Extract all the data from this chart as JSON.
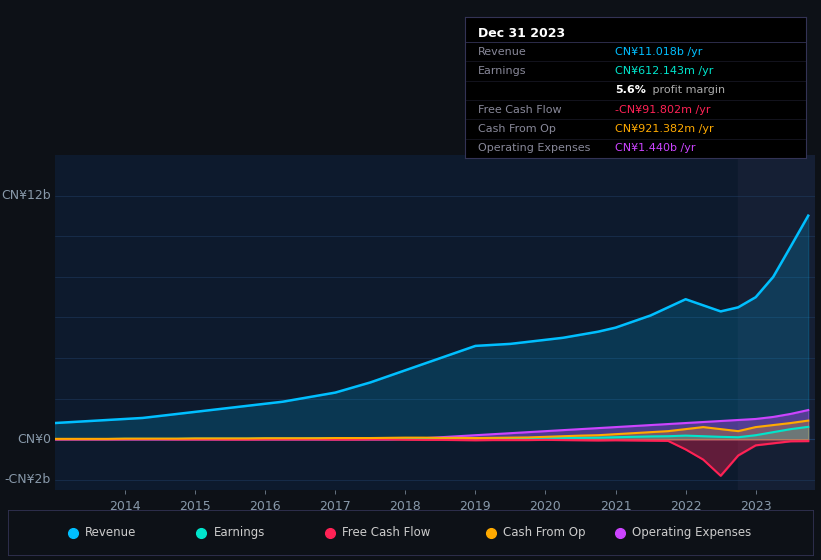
{
  "bg_color": "#0d1117",
  "plot_bg_color": "#0d1a2d",
  "grid_color": "#1e3a5f",
  "text_color": "#8899aa",
  "title_color": "#ffffff",
  "years": [
    2013.0,
    2013.25,
    2013.5,
    2013.75,
    2014.0,
    2014.25,
    2014.5,
    2014.75,
    2015.0,
    2015.25,
    2015.5,
    2015.75,
    2016.0,
    2016.25,
    2016.5,
    2016.75,
    2017.0,
    2017.25,
    2017.5,
    2017.75,
    2018.0,
    2018.25,
    2018.5,
    2018.75,
    2019.0,
    2019.25,
    2019.5,
    2019.75,
    2020.0,
    2020.25,
    2020.5,
    2020.75,
    2021.0,
    2021.25,
    2021.5,
    2021.75,
    2022.0,
    2022.25,
    2022.5,
    2022.75,
    2023.0,
    2023.25,
    2023.5,
    2023.75
  ],
  "revenue": [
    0.8,
    0.85,
    0.9,
    0.95,
    1.0,
    1.05,
    1.15,
    1.25,
    1.35,
    1.45,
    1.55,
    1.65,
    1.75,
    1.85,
    2.0,
    2.15,
    2.3,
    2.55,
    2.8,
    3.1,
    3.4,
    3.7,
    4.0,
    4.3,
    4.6,
    4.65,
    4.7,
    4.8,
    4.9,
    5.0,
    5.15,
    5.3,
    5.5,
    5.8,
    6.1,
    6.5,
    6.9,
    6.6,
    6.3,
    6.5,
    7.0,
    8.0,
    9.5,
    11.018
  ],
  "earnings": [
    0.01,
    0.01,
    0.01,
    0.01,
    0.02,
    0.02,
    0.02,
    0.02,
    0.03,
    0.03,
    0.03,
    0.03,
    0.04,
    0.04,
    0.04,
    0.05,
    0.05,
    0.05,
    0.05,
    0.05,
    0.06,
    0.06,
    0.06,
    0.05,
    0.05,
    0.05,
    0.06,
    0.06,
    0.07,
    0.07,
    0.07,
    0.08,
    0.1,
    0.12,
    0.14,
    0.15,
    0.18,
    0.15,
    0.12,
    0.1,
    0.2,
    0.35,
    0.5,
    0.612
  ],
  "free_cash_flow": [
    0.0,
    0.0,
    0.0,
    0.0,
    0.01,
    0.01,
    0.01,
    0.0,
    0.0,
    0.0,
    -0.01,
    -0.01,
    0.0,
    0.0,
    0.0,
    0.0,
    -0.01,
    -0.01,
    0.0,
    0.0,
    -0.02,
    -0.03,
    -0.03,
    -0.04,
    -0.05,
    -0.04,
    -0.04,
    -0.04,
    -0.03,
    -0.04,
    -0.05,
    -0.06,
    -0.05,
    -0.06,
    -0.07,
    -0.08,
    -0.5,
    -1.0,
    -1.8,
    -0.8,
    -0.3,
    -0.2,
    -0.1,
    -0.092
  ],
  "cash_from_op": [
    0.02,
    0.02,
    0.02,
    0.02,
    0.03,
    0.03,
    0.03,
    0.03,
    0.04,
    0.04,
    0.04,
    0.04,
    0.05,
    0.05,
    0.05,
    0.05,
    0.06,
    0.06,
    0.06,
    0.07,
    0.08,
    0.08,
    0.07,
    0.07,
    0.06,
    0.07,
    0.08,
    0.09,
    0.12,
    0.15,
    0.18,
    0.2,
    0.25,
    0.3,
    0.35,
    0.4,
    0.5,
    0.6,
    0.5,
    0.4,
    0.6,
    0.7,
    0.8,
    0.921
  ],
  "operating_expenses": [
    0.0,
    0.0,
    0.0,
    0.0,
    0.0,
    0.0,
    0.0,
    0.0,
    0.0,
    0.0,
    0.0,
    0.0,
    0.0,
    0.0,
    0.0,
    0.0,
    0.0,
    0.0,
    0.0,
    0.0,
    0.02,
    0.05,
    0.1,
    0.15,
    0.2,
    0.25,
    0.3,
    0.35,
    0.4,
    0.45,
    0.5,
    0.55,
    0.6,
    0.65,
    0.7,
    0.75,
    0.8,
    0.85,
    0.9,
    0.95,
    1.0,
    1.1,
    1.25,
    1.44
  ],
  "revenue_color": "#00bfff",
  "earnings_color": "#00e5cc",
  "free_cash_flow_color": "#ff2255",
  "cash_from_op_color": "#ffaa00",
  "operating_expenses_color": "#cc44ff",
  "info_box": {
    "title": "Dec 31 2023",
    "title_color": "#ffffff",
    "rows": [
      {
        "label": "Revenue",
        "value": "CN¥11.018b /yr",
        "value_color": "#00bfff",
        "label_color": "#888899"
      },
      {
        "label": "Earnings",
        "value": "CN¥612.143m /yr",
        "value_color": "#00e5cc",
        "label_color": "#888899"
      },
      {
        "label": "",
        "value": "5.6% profit margin",
        "value_color": "#ffffff",
        "label_color": "#888899"
      },
      {
        "label": "Free Cash Flow",
        "value": "-CN¥91.802m /yr",
        "value_color": "#ff2255",
        "label_color": "#888899"
      },
      {
        "label": "Cash From Op",
        "value": "CN¥921.382m /yr",
        "value_color": "#ffaa00",
        "label_color": "#888899"
      },
      {
        "label": "Operating Expenses",
        "value": "CN¥1.440b /yr",
        "value_color": "#cc44ff",
        "label_color": "#888899"
      }
    ]
  },
  "legend_items": [
    {
      "label": "Revenue",
      "color": "#00bfff"
    },
    {
      "label": "Earnings",
      "color": "#00e5cc"
    },
    {
      "label": "Free Cash Flow",
      "color": "#ff2255"
    },
    {
      "label": "Cash From Op",
      "color": "#ffaa00"
    },
    {
      "label": "Operating Expenses",
      "color": "#cc44ff"
    }
  ],
  "ylim": [
    -2.5,
    14.0
  ],
  "xlim": [
    2013.0,
    2023.85
  ],
  "x_ticks": [
    2014,
    2015,
    2016,
    2017,
    2018,
    2019,
    2020,
    2021,
    2022,
    2023
  ],
  "y_label_12b": "CN¥12b",
  "y_label_0": "CN¥0",
  "y_label_neg2b": "-CN¥2b"
}
